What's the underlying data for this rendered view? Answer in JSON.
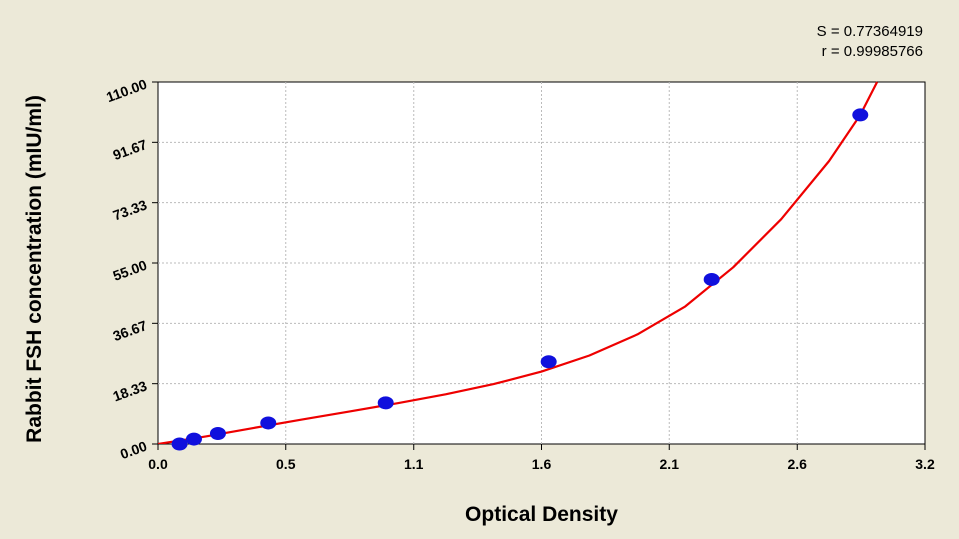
{
  "chart_data": {
    "type": "scatter",
    "title": "",
    "xlabel": "Optical Density",
    "ylabel": "Rabbit FSH concentration (mIU/ml)",
    "xlim": [
      0.0,
      3.2
    ],
    "ylim": [
      0.0,
      110.0
    ],
    "x_ticks": [
      "0.0",
      "0.5",
      "1.1",
      "1.6",
      "2.1",
      "2.6",
      "3.2"
    ],
    "x_tick_values": [
      0.0,
      0.533,
      1.067,
      1.6,
      2.133,
      2.667,
      3.2
    ],
    "y_ticks": [
      "0.00",
      "18.33",
      "36.67",
      "55.00",
      "73.33",
      "91.67",
      "110.00"
    ],
    "y_tick_values": [
      0.0,
      18.33,
      36.67,
      55.0,
      73.33,
      91.67,
      110.0
    ],
    "grid": true,
    "points": [
      {
        "x": 0.09,
        "y": 0.0
      },
      {
        "x": 0.15,
        "y": 1.5
      },
      {
        "x": 0.25,
        "y": 3.2
      },
      {
        "x": 0.46,
        "y": 6.4
      },
      {
        "x": 0.95,
        "y": 12.5
      },
      {
        "x": 1.63,
        "y": 25.0
      },
      {
        "x": 2.31,
        "y": 50.0
      },
      {
        "x": 2.93,
        "y": 100.0
      }
    ],
    "fit_curve": {
      "type": "curve",
      "color": "#ee0000",
      "points": [
        [
          0.0,
          0.0
        ],
        [
          0.2,
          2.3
        ],
        [
          0.4,
          4.9
        ],
        [
          0.6,
          7.4
        ],
        [
          0.8,
          9.9
        ],
        [
          1.0,
          12.4
        ],
        [
          1.2,
          15.1
        ],
        [
          1.4,
          18.2
        ],
        [
          1.6,
          22.0
        ],
        [
          1.8,
          26.9
        ],
        [
          2.0,
          33.3
        ],
        [
          2.2,
          41.8
        ],
        [
          2.4,
          53.7
        ],
        [
          2.6,
          68.3
        ],
        [
          2.8,
          86.0
        ],
        [
          2.93,
          100.0
        ],
        [
          3.0,
          110.0
        ]
      ]
    },
    "stats": {
      "s_label": "S = 0.77364919",
      "r_label": "r = 0.99985766"
    },
    "colors": {
      "background": "#ece9d8",
      "plot_bg": "#ffffff",
      "point": "#1010dd",
      "curve": "#ee0000",
      "grid": "#bbbbbb"
    }
  }
}
